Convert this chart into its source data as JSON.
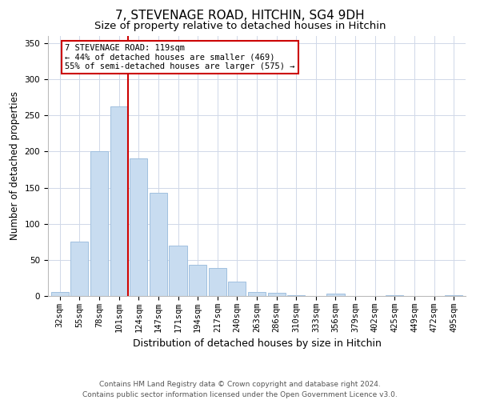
{
  "title": "7, STEVENAGE ROAD, HITCHIN, SG4 9DH",
  "subtitle": "Size of property relative to detached houses in Hitchin",
  "xlabel": "Distribution of detached houses by size in Hitchin",
  "ylabel": "Number of detached properties",
  "bar_labels": [
    "32sqm",
    "55sqm",
    "78sqm",
    "101sqm",
    "124sqm",
    "147sqm",
    "171sqm",
    "194sqm",
    "217sqm",
    "240sqm",
    "263sqm",
    "286sqm",
    "310sqm",
    "333sqm",
    "356sqm",
    "379sqm",
    "402sqm",
    "425sqm",
    "449sqm",
    "472sqm",
    "495sqm"
  ],
  "bar_values": [
    5,
    75,
    201,
    262,
    191,
    143,
    70,
    43,
    39,
    20,
    5,
    4,
    1,
    0,
    3,
    0,
    0,
    1,
    0,
    0,
    1
  ],
  "bar_color": "#c8dcf0",
  "bar_edge_color": "#a0c0df",
  "vline_color": "#cc0000",
  "ylim": [
    0,
    360
  ],
  "yticks": [
    0,
    50,
    100,
    150,
    200,
    250,
    300,
    350
  ],
  "annotation_title": "7 STEVENAGE ROAD: 119sqm",
  "annotation_line1": "← 44% of detached houses are smaller (469)",
  "annotation_line2": "55% of semi-detached houses are larger (575) →",
  "annotation_box_color": "#ffffff",
  "annotation_border_color": "#cc0000",
  "footer_line1": "Contains HM Land Registry data © Crown copyright and database right 2024.",
  "footer_line2": "Contains public sector information licensed under the Open Government Licence v3.0.",
  "background_color": "#ffffff",
  "grid_color": "#d0d8e8",
  "title_fontsize": 11,
  "subtitle_fontsize": 9.5,
  "xlabel_fontsize": 9,
  "ylabel_fontsize": 8.5,
  "tick_fontsize": 7.5,
  "annotation_fontsize": 7.5,
  "footer_fontsize": 6.5
}
